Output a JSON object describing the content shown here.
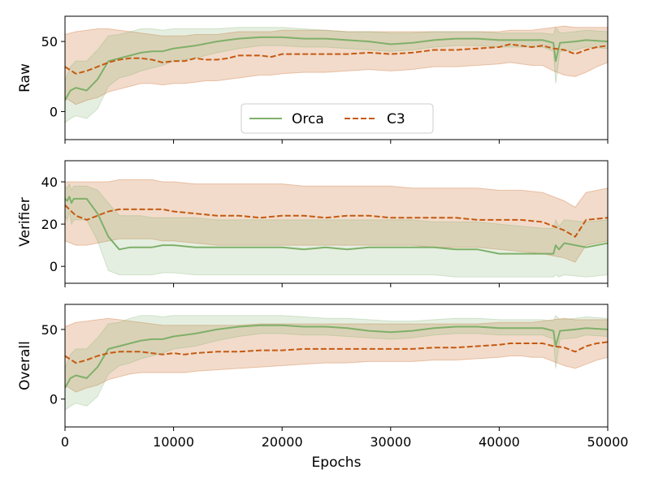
{
  "chart_data": {
    "type": "line",
    "xlabel": "Epochs",
    "xlim": [
      0,
      50000
    ],
    "xticks": [
      0,
      10000,
      20000,
      30000,
      40000,
      50000
    ],
    "legend": {
      "placement": "lower-center",
      "panel": 0
    },
    "colors": {
      "orca": "#7fb069",
      "c3": "#c65a11"
    },
    "subplots": [
      {
        "ylabel": "Raw",
        "ylim": [
          -20,
          68
        ],
        "yticks": [
          0,
          50
        ],
        "series": [
          {
            "name": "Orca",
            "style": "solid",
            "x": [
              0,
              500,
              1000,
              2000,
              3000,
              4000,
              5000,
              6000,
              7000,
              8000,
              9000,
              10000,
              12000,
              14000,
              16000,
              18000,
              20000,
              22000,
              24000,
              26000,
              28000,
              30000,
              32000,
              34000,
              36000,
              38000,
              40000,
              42000,
              44000,
              45000,
              45200,
              45600,
              47000,
              48000,
              50000
            ],
            "y": [
              8,
              15,
              17,
              15,
              23,
              36,
              38,
              40,
              42,
              43,
              43,
              45,
              47,
              50,
              52,
              53,
              53,
              52,
              52,
              51,
              50,
              48,
              49,
              51,
              52,
              52,
              51,
              51,
              51,
              49,
              36,
              49,
              50,
              51,
              50
            ],
            "lower": [
              -8,
              -5,
              -3,
              -5,
              2,
              18,
              24,
              26,
              29,
              31,
              33,
              36,
              38,
              42,
              45,
              47,
              47,
              46,
              46,
              45,
              44,
              43,
              44,
              46,
              47,
              47,
              46,
              46,
              46,
              43,
              20,
              43,
              44,
              46,
              45
            ],
            "upper": [
              22,
              32,
              36,
              36,
              44,
              54,
              55,
              57,
              59,
              59,
              58,
              59,
              59,
              59,
              60,
              60,
              60,
              59,
              58,
              57,
              57,
              56,
              56,
              57,
              57,
              57,
              56,
              56,
              56,
              55,
              60,
              56,
              57,
              58,
              57
            ]
          },
          {
            "name": "C3",
            "style": "dashed",
            "x": [
              0,
              1000,
              2000,
              3000,
              4000,
              5000,
              6000,
              7000,
              8000,
              9000,
              10000,
              11000,
              12000,
              13000,
              14000,
              15000,
              16000,
              18000,
              19000,
              20000,
              22000,
              24000,
              26000,
              28000,
              30000,
              32000,
              34000,
              36000,
              38000,
              40000,
              41000,
              42000,
              43000,
              44000,
              45000,
              46000,
              47000,
              48000,
              49000,
              50000
            ],
            "y": [
              32,
              27,
              29,
              32,
              35,
              37,
              38,
              38,
              37,
              35,
              36,
              36,
              38,
              37,
              37,
              38,
              40,
              40,
              39,
              41,
              41,
              41,
              41,
              42,
              41,
              42,
              44,
              44,
              45,
              46,
              48,
              47,
              46,
              47,
              45,
              44,
              41,
              44,
              46,
              47
            ],
            "lower": [
              10,
              5,
              8,
              10,
              14,
              16,
              18,
              20,
              20,
              19,
              20,
              20,
              21,
              22,
              22,
              23,
              24,
              26,
              26,
              27,
              28,
              28,
              29,
              30,
              29,
              30,
              32,
              32,
              33,
              34,
              35,
              34,
              33,
              33,
              29,
              26,
              25,
              28,
              32,
              35
            ],
            "upper": [
              55,
              57,
              58,
              59,
              59,
              58,
              57,
              56,
              55,
              54,
              54,
              54,
              55,
              55,
              55,
              56,
              57,
              57,
              57,
              58,
              58,
              58,
              57,
              57,
              57,
              57,
              57,
              57,
              57,
              57,
              58,
              58,
              58,
              59,
              60,
              61,
              60,
              60,
              60,
              60
            ]
          }
        ]
      },
      {
        "ylabel": "Verifier",
        "ylim": [
          -8,
          50
        ],
        "yticks": [
          0,
          20,
          40
        ],
        "series": [
          {
            "name": "Orca",
            "style": "solid",
            "x": [
              0,
              200,
              400,
              600,
              800,
              1000,
              2000,
              3000,
              4000,
              5000,
              6000,
              7000,
              8000,
              9000,
              10000,
              12000,
              14000,
              16000,
              18000,
              20000,
              22000,
              24000,
              26000,
              28000,
              30000,
              32000,
              34000,
              36000,
              38000,
              40000,
              42000,
              44000,
              45000,
              45200,
              45500,
              46000,
              48000,
              50000
            ],
            "y": [
              32,
              31,
              33,
              30,
              32,
              32,
              32,
              25,
              14,
              8,
              9,
              9,
              9,
              10,
              10,
              9,
              9,
              9,
              9,
              9,
              8,
              9,
              8,
              9,
              9,
              9,
              9,
              8,
              8,
              6,
              6,
              6,
              6,
              10,
              8,
              11,
              9,
              11
            ],
            "lower": [
              24,
              22,
              26,
              20,
              22,
              22,
              22,
              12,
              -2,
              -4,
              -4,
              -4,
              -4,
              -3,
              -3,
              -4,
              -4,
              -4,
              -4,
              -4,
              -4,
              -4,
              -4,
              -4,
              -4,
              -4,
              -4,
              -5,
              -5,
              -5,
              -5,
              -5,
              -5,
              -4,
              -5,
              -4,
              -5,
              -4
            ],
            "upper": [
              38,
              37,
              39,
              36,
              38,
              38,
              38,
              36,
              30,
              24,
              24,
              24,
              23,
              23,
              23,
              23,
              22,
              22,
              22,
              22,
              22,
              22,
              22,
              22,
              22,
              22,
              21,
              21,
              21,
              20,
              19,
              18,
              18,
              22,
              19,
              22,
              21,
              22
            ]
          },
          {
            "name": "C3",
            "style": "dashed",
            "x": [
              0,
              1000,
              2000,
              3000,
              4000,
              5000,
              6000,
              7000,
              8000,
              9000,
              10000,
              12000,
              14000,
              16000,
              18000,
              20000,
              22000,
              24000,
              26000,
              28000,
              30000,
              32000,
              34000,
              36000,
              38000,
              40000,
              42000,
              44000,
              45000,
              46000,
              47000,
              48000,
              50000
            ],
            "y": [
              29,
              24,
              22,
              24,
              26,
              27,
              27,
              27,
              27,
              27,
              26,
              25,
              24,
              24,
              23,
              24,
              24,
              23,
              24,
              24,
              23,
              23,
              23,
              23,
              22,
              22,
              22,
              21,
              19,
              17,
              14,
              22,
              23
            ],
            "lower": [
              12,
              10,
              10,
              11,
              12,
              13,
              13,
              13,
              13,
              12,
              12,
              11,
              10,
              10,
              10,
              10,
              10,
              10,
              10,
              10,
              10,
              10,
              9,
              9,
              9,
              8,
              7,
              6,
              5,
              4,
              2,
              10,
              12
            ],
            "upper": [
              40,
              40,
              40,
              40,
              40,
              41,
              41,
              41,
              41,
              40,
              40,
              39,
              39,
              39,
              39,
              39,
              38,
              38,
              38,
              38,
              38,
              37,
              37,
              37,
              37,
              36,
              36,
              35,
              33,
              31,
              28,
              35,
              37
            ]
          }
        ]
      },
      {
        "ylabel": "Overall",
        "ylim": [
          -20,
          68
        ],
        "yticks": [
          0,
          50
        ],
        "series": [
          {
            "name": "Orca",
            "style": "solid",
            "x": [
              0,
              500,
              1000,
              2000,
              3000,
              4000,
              5000,
              6000,
              7000,
              8000,
              9000,
              10000,
              12000,
              14000,
              16000,
              18000,
              20000,
              22000,
              24000,
              26000,
              28000,
              30000,
              32000,
              34000,
              36000,
              38000,
              40000,
              42000,
              44000,
              45000,
              45200,
              45600,
              47000,
              48000,
              50000
            ],
            "y": [
              8,
              15,
              17,
              15,
              23,
              36,
              38,
              40,
              42,
              43,
              43,
              45,
              47,
              50,
              52,
              53,
              53,
              52,
              52,
              51,
              49,
              48,
              49,
              51,
              52,
              52,
              51,
              51,
              51,
              49,
              38,
              49,
              50,
              51,
              50
            ],
            "lower": [
              -8,
              -5,
              -3,
              -5,
              2,
              18,
              24,
              26,
              29,
              31,
              33,
              36,
              38,
              42,
              45,
              47,
              47,
              46,
              46,
              45,
              44,
              43,
              44,
              46,
              47,
              47,
              46,
              46,
              46,
              43,
              22,
              43,
              44,
              46,
              45
            ],
            "upper": [
              22,
              32,
              36,
              36,
              44,
              54,
              55,
              58,
              60,
              60,
              59,
              60,
              60,
              60,
              60,
              60,
              60,
              59,
              58,
              58,
              57,
              56,
              56,
              57,
              58,
              58,
              57,
              57,
              57,
              56,
              60,
              57,
              58,
              59,
              58
            ]
          },
          {
            "name": "C3",
            "style": "dashed",
            "x": [
              0,
              1000,
              2000,
              3000,
              4000,
              5000,
              6000,
              7000,
              8000,
              9000,
              10000,
              11000,
              12000,
              14000,
              16000,
              18000,
              20000,
              22000,
              24000,
              26000,
              28000,
              30000,
              32000,
              34000,
              36000,
              38000,
              40000,
              41000,
              42000,
              43000,
              44000,
              45000,
              46000,
              47000,
              48000,
              49000,
              50000
            ],
            "y": [
              31,
              26,
              28,
              31,
              33,
              34,
              34,
              34,
              33,
              32,
              33,
              32,
              33,
              34,
              34,
              35,
              35,
              36,
              36,
              36,
              36,
              36,
              36,
              37,
              37,
              38,
              39,
              40,
              40,
              40,
              40,
              38,
              37,
              34,
              38,
              40,
              41
            ],
            "lower": [
              10,
              5,
              8,
              10,
              14,
              16,
              18,
              19,
              19,
              19,
              19,
              19,
              20,
              21,
              22,
              23,
              24,
              25,
              26,
              26,
              27,
              27,
              27,
              28,
              28,
              29,
              30,
              31,
              31,
              30,
              30,
              27,
              24,
              22,
              25,
              28,
              30
            ],
            "upper": [
              52,
              55,
              56,
              57,
              58,
              57,
              56,
              55,
              54,
              53,
              53,
              53,
              53,
              53,
              53,
              54,
              54,
              54,
              54,
              54,
              54,
              54,
              54,
              54,
              54,
              54,
              55,
              55,
              55,
              55,
              56,
              57,
              58,
              57,
              57,
              57,
              57
            ]
          }
        ]
      }
    ]
  }
}
